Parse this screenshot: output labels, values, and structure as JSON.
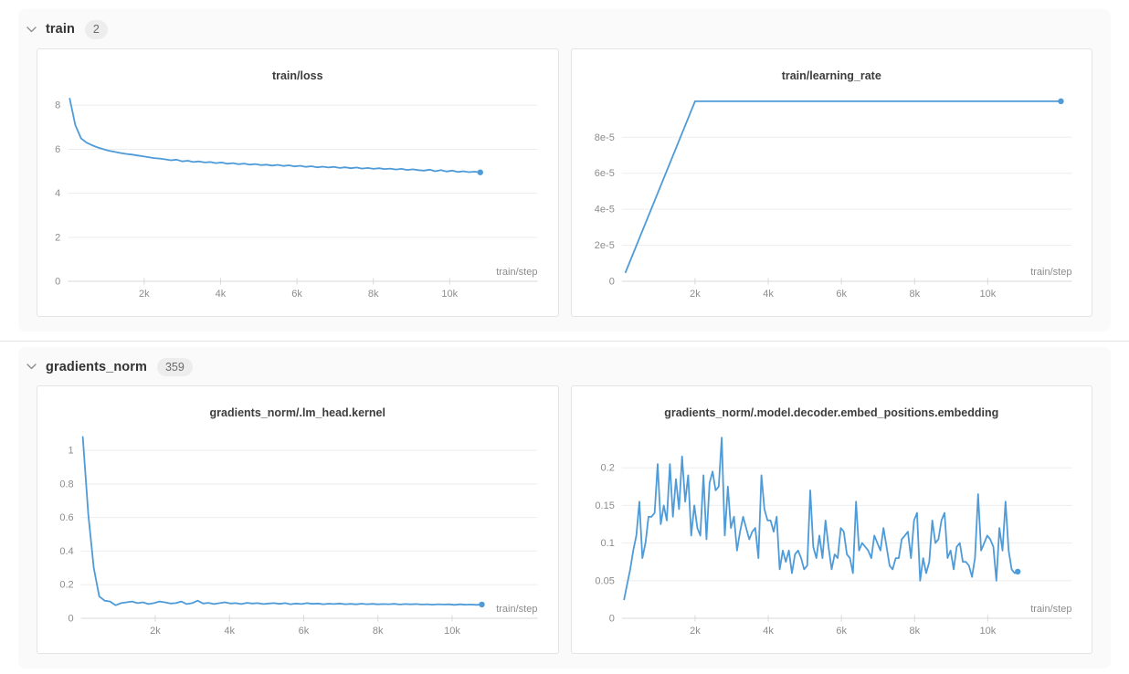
{
  "palette": {
    "accent": "#4e9bd8",
    "section_bg": "#fafafa",
    "panel_border": "#e4e4e4",
    "grid": "#ededed",
    "axis": "#d9d9d9",
    "tick_text": "#8c8c8c",
    "title_text": "#3d3d3d",
    "header_text": "#333333",
    "badge_bg": "#ededed",
    "badge_text": "#6b6b6b"
  },
  "sections": [
    {
      "label": "train",
      "count": "2"
    },
    {
      "label": "gradients_norm",
      "count": "359"
    }
  ],
  "chart_data": [
    {
      "type": "line",
      "title": "train/loss",
      "xlabel": "train/step",
      "xlim": [
        0,
        12300
      ],
      "ylim": [
        0,
        8.55
      ],
      "xtick_vals": [
        2000,
        4000,
        6000,
        8000,
        10000
      ],
      "xtick_labels": [
        "2k",
        "4k",
        "6k",
        "8k",
        "10k"
      ],
      "ytick_vals": [
        0,
        2,
        4,
        6,
        8
      ],
      "ytick_labels": [
        "0",
        "2",
        "4",
        "6",
        "8"
      ],
      "x_start": 50,
      "x_end": 10800,
      "end_dot": true,
      "y": [
        8.3,
        7.1,
        6.5,
        6.3,
        6.18,
        6.08,
        6.0,
        5.93,
        5.88,
        5.83,
        5.79,
        5.76,
        5.72,
        5.68,
        5.64,
        5.6,
        5.58,
        5.54,
        5.5,
        5.53,
        5.45,
        5.48,
        5.42,
        5.45,
        5.4,
        5.42,
        5.37,
        5.4,
        5.34,
        5.37,
        5.32,
        5.35,
        5.3,
        5.33,
        5.28,
        5.3,
        5.26,
        5.29,
        5.24,
        5.27,
        5.22,
        5.25,
        5.2,
        5.23,
        5.18,
        5.21,
        5.17,
        5.2,
        5.15,
        5.18,
        5.14,
        5.17,
        5.12,
        5.15,
        5.11,
        5.14,
        5.1,
        5.12,
        5.08,
        5.11,
        5.06,
        5.09,
        5.05,
        5.03,
        5.07,
        5.0,
        5.05,
        4.99,
        5.03,
        4.97,
        5.0,
        4.96,
        4.98,
        4.95
      ]
    },
    {
      "type": "line",
      "title": "train/learning_rate",
      "xlabel": "train/step",
      "xlim": [
        0,
        12300
      ],
      "ylim": [
        0,
        0.0001045
      ],
      "xtick_vals": [
        2000,
        4000,
        6000,
        8000,
        10000
      ],
      "xtick_labels": [
        "2k",
        "4k",
        "6k",
        "8k",
        "10k"
      ],
      "ytick_vals": [
        0,
        2e-05,
        4e-05,
        6e-05,
        8e-05
      ],
      "ytick_labels": [
        "0",
        "2e-5",
        "4e-5",
        "6e-5",
        "8e-5"
      ],
      "x": [
        100,
        2000,
        12000
      ],
      "end_dot": true,
      "y": [
        5e-06,
        0.0001,
        0.0001
      ]
    },
    {
      "type": "line",
      "title": "gradients_norm/.lm_head.kernel",
      "xlabel": "train/step",
      "xlim": [
        0,
        12300
      ],
      "ylim": [
        0,
        1.12
      ],
      "xtick_vals": [
        2000,
        4000,
        6000,
        8000,
        10000
      ],
      "xtick_labels": [
        "2k",
        "4k",
        "6k",
        "8k",
        "10k"
      ],
      "ytick_vals": [
        0,
        0.2,
        0.4,
        0.6,
        0.8,
        1
      ],
      "ytick_labels": [
        "0",
        "0.2",
        "0.4",
        "0.6",
        "0.8",
        "1"
      ],
      "x_start": 50,
      "x_end": 10800,
      "end_dot": true,
      "y": [
        1.08,
        0.62,
        0.3,
        0.13,
        0.105,
        0.1,
        0.078,
        0.09,
        0.095,
        0.1,
        0.09,
        0.095,
        0.085,
        0.09,
        0.1,
        0.095,
        0.088,
        0.09,
        0.1,
        0.085,
        0.09,
        0.105,
        0.088,
        0.092,
        0.085,
        0.09,
        0.095,
        0.088,
        0.09,
        0.085,
        0.092,
        0.088,
        0.09,
        0.085,
        0.088,
        0.09,
        0.086,
        0.09,
        0.084,
        0.088,
        0.085,
        0.09,
        0.086,
        0.088,
        0.084,
        0.087,
        0.085,
        0.088,
        0.084,
        0.086,
        0.083,
        0.087,
        0.084,
        0.086,
        0.083,
        0.085,
        0.084,
        0.086,
        0.082,
        0.085,
        0.083,
        0.085,
        0.082,
        0.084,
        0.081,
        0.084,
        0.082,
        0.083,
        0.08,
        0.083,
        0.081,
        0.082,
        0.08,
        0.082
      ]
    },
    {
      "type": "line",
      "title": "gradients_norm/.model.decoder.embed_positions.embedding",
      "xlabel": "train/step",
      "xlim": [
        0,
        12300
      ],
      "ylim": [
        0,
        0.25
      ],
      "xtick_vals": [
        2000,
        4000,
        6000,
        8000,
        10000
      ],
      "xtick_labels": [
        "2k",
        "4k",
        "6k",
        "8k",
        "10k"
      ],
      "ytick_vals": [
        0,
        0.05,
        0.1,
        0.15,
        0.2
      ],
      "ytick_labels": [
        "0",
        "0.05",
        "0.1",
        "0.15",
        "0.2"
      ],
      "x_start": 60,
      "x_end": 10820,
      "end_dot": true,
      "y": [
        0.025,
        0.045,
        0.065,
        0.09,
        0.11,
        0.155,
        0.08,
        0.1,
        0.135,
        0.135,
        0.14,
        0.205,
        0.125,
        0.15,
        0.13,
        0.205,
        0.135,
        0.185,
        0.145,
        0.215,
        0.155,
        0.19,
        0.11,
        0.15,
        0.12,
        0.11,
        0.19,
        0.105,
        0.18,
        0.195,
        0.17,
        0.175,
        0.24,
        0.11,
        0.175,
        0.12,
        0.135,
        0.09,
        0.115,
        0.135,
        0.12,
        0.105,
        0.115,
        0.12,
        0.08,
        0.19,
        0.145,
        0.13,
        0.13,
        0.115,
        0.135,
        0.065,
        0.09,
        0.075,
        0.09,
        0.06,
        0.085,
        0.09,
        0.08,
        0.065,
        0.07,
        0.17,
        0.095,
        0.08,
        0.11,
        0.08,
        0.13,
        0.095,
        0.065,
        0.085,
        0.08,
        0.12,
        0.115,
        0.085,
        0.08,
        0.06,
        0.155,
        0.09,
        0.1,
        0.095,
        0.09,
        0.08,
        0.11,
        0.1,
        0.09,
        0.12,
        0.095,
        0.07,
        0.065,
        0.08,
        0.08,
        0.105,
        0.11,
        0.115,
        0.08,
        0.13,
        0.14,
        0.05,
        0.08,
        0.06,
        0.075,
        0.13,
        0.1,
        0.105,
        0.13,
        0.14,
        0.08,
        0.09,
        0.065,
        0.095,
        0.1,
        0.075,
        0.075,
        0.07,
        0.055,
        0.08,
        0.165,
        0.09,
        0.1,
        0.11,
        0.105,
        0.095,
        0.05,
        0.12,
        0.09,
        0.155,
        0.09,
        0.065,
        0.06,
        0.062
      ]
    }
  ]
}
